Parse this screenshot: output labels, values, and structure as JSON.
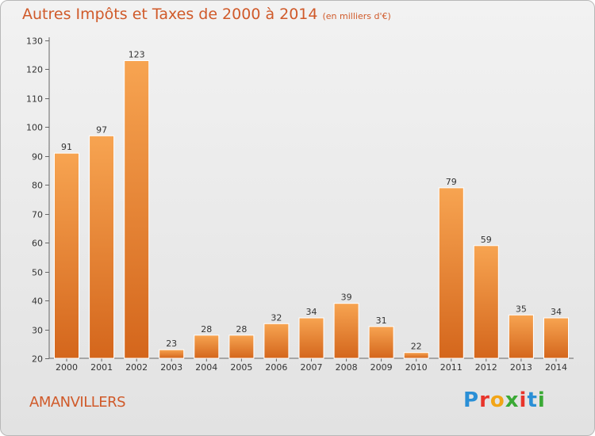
{
  "header": {
    "title": "Autres Impôts et Taxes de 2000 à 2014",
    "subtitle": "(en milliers d'€)"
  },
  "footer": {
    "city": "AMANVILLERS",
    "logo_text": "Proxiti"
  },
  "colors": {
    "bar_light": "#f7a451",
    "bar_dark": "#d4661c",
    "accent": "#d05a2a"
  },
  "chart_data": {
    "type": "bar",
    "categories": [
      "2000",
      "2001",
      "2002",
      "2003",
      "2004",
      "2005",
      "2006",
      "2007",
      "2008",
      "2009",
      "2010",
      "2011",
      "2012",
      "2013",
      "2014"
    ],
    "values": [
      91,
      97,
      123,
      23,
      28,
      28,
      32,
      34,
      39,
      31,
      22,
      79,
      59,
      35,
      34
    ],
    "title": "Autres Impôts et Taxes de 2000 à 2014",
    "subtitle": "(en milliers d'€)",
    "xlabel": "",
    "ylabel": "",
    "ylim": [
      20,
      130
    ],
    "yticks": [
      20,
      30,
      40,
      50,
      60,
      70,
      80,
      90,
      100,
      110,
      120,
      130
    ],
    "grid": false,
    "legend": "none"
  }
}
